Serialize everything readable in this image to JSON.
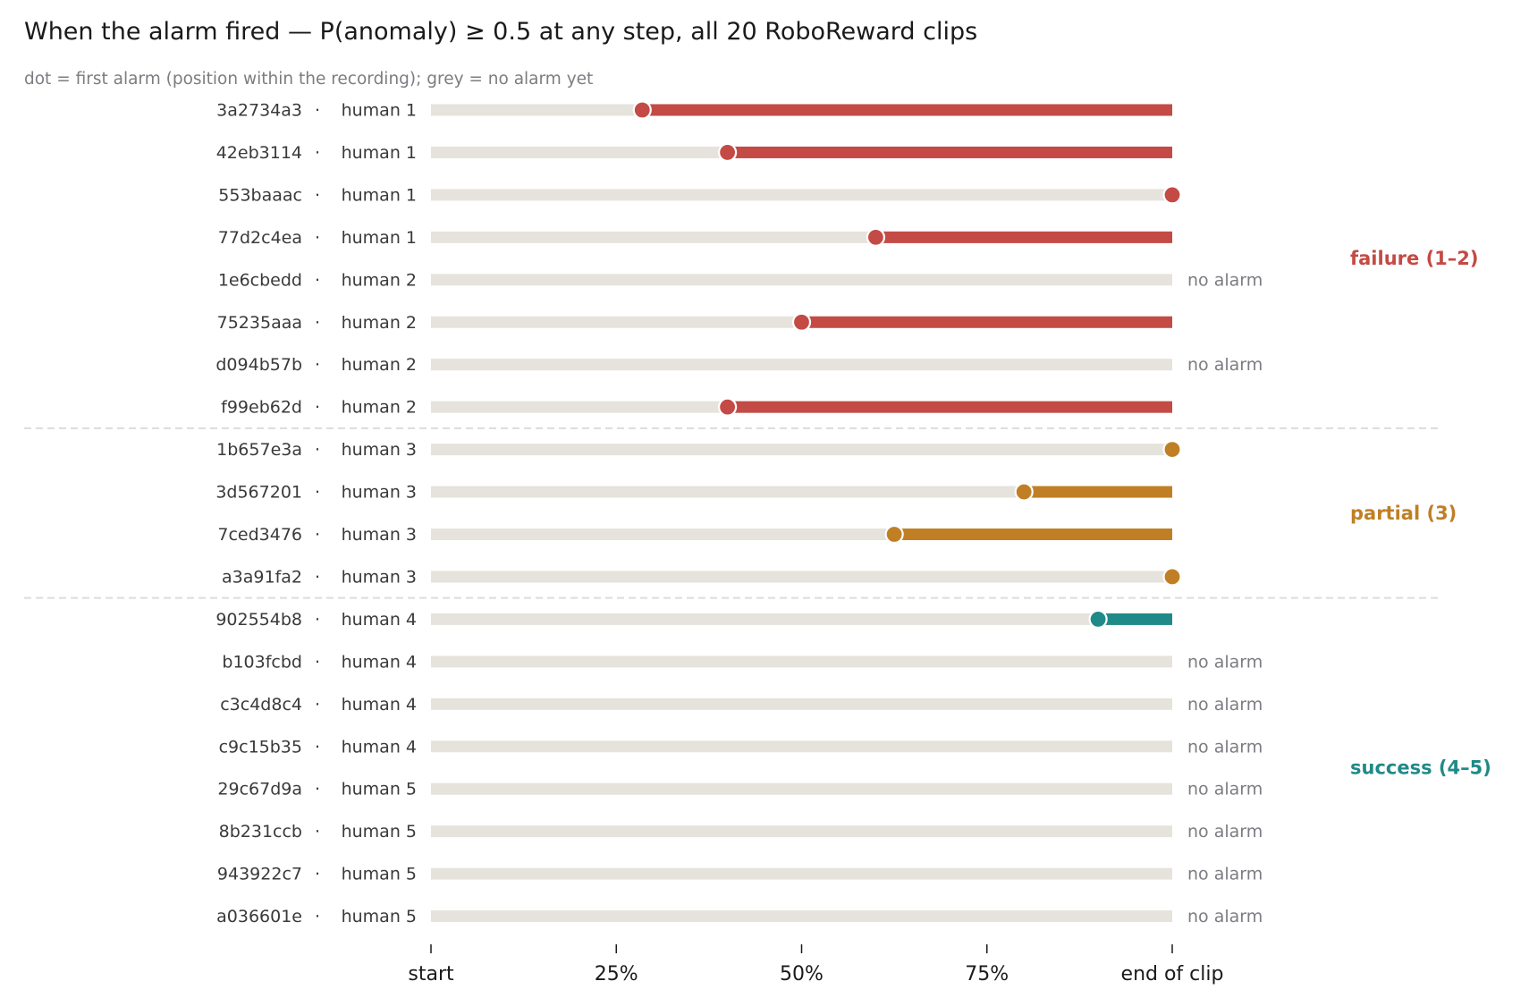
{
  "chart_data": {
    "type": "dot-range",
    "title": "When the alarm fired — P(anomaly) ≥ 0.5 at any step, all 20 RoboReward clips",
    "subtitle": "dot = first alarm (position within the recording); grey = no alarm yet",
    "x_ticks": [
      {
        "value": 0,
        "label": "start"
      },
      {
        "value": 25,
        "label": "25%"
      },
      {
        "value": 50,
        "label": "50%"
      },
      {
        "value": 75,
        "label": "75%"
      },
      {
        "value": 100,
        "label": "end of clip"
      }
    ],
    "xlim": [
      0,
      100
    ],
    "no_alarm_label": "no alarm",
    "separator": "·",
    "groups": [
      {
        "label": "failure (1–2)",
        "color": "#c44a45"
      },
      {
        "label": "partial (3)",
        "color": "#c07f25"
      },
      {
        "label": "success (4–5)",
        "color": "#1f8a88"
      }
    ],
    "track_color": "#e6e3dc",
    "rows": [
      {
        "clip": "3a2734a3",
        "rating": "human 1",
        "group": 0,
        "alarm": 28.5
      },
      {
        "clip": "42eb3114",
        "rating": "human 1",
        "group": 0,
        "alarm": 40
      },
      {
        "clip": "553baaac",
        "rating": "human 1",
        "group": 0,
        "alarm": 100
      },
      {
        "clip": "77d2c4ea",
        "rating": "human 1",
        "group": 0,
        "alarm": 60
      },
      {
        "clip": "1e6cbedd",
        "rating": "human 2",
        "group": 0,
        "alarm": null
      },
      {
        "clip": "75235aaa",
        "rating": "human 2",
        "group": 0,
        "alarm": 50
      },
      {
        "clip": "d094b57b",
        "rating": "human 2",
        "group": 0,
        "alarm": null
      },
      {
        "clip": "f99eb62d",
        "rating": "human 2",
        "group": 0,
        "alarm": 40
      },
      {
        "clip": "1b657e3a",
        "rating": "human 3",
        "group": 1,
        "alarm": 100
      },
      {
        "clip": "3d567201",
        "rating": "human 3",
        "group": 1,
        "alarm": 80
      },
      {
        "clip": "7ced3476",
        "rating": "human 3",
        "group": 1,
        "alarm": 62.5
      },
      {
        "clip": "a3a91fa2",
        "rating": "human 3",
        "group": 1,
        "alarm": 100
      },
      {
        "clip": "902554b8",
        "rating": "human 4",
        "group": 2,
        "alarm": 90
      },
      {
        "clip": "b103fcbd",
        "rating": "human 4",
        "group": 2,
        "alarm": null
      },
      {
        "clip": "c3c4d8c4",
        "rating": "human 4",
        "group": 2,
        "alarm": null
      },
      {
        "clip": "c9c15b35",
        "rating": "human 4",
        "group": 2,
        "alarm": null
      },
      {
        "clip": "29c67d9a",
        "rating": "human 5",
        "group": 2,
        "alarm": null
      },
      {
        "clip": "8b231ccb",
        "rating": "human 5",
        "group": 2,
        "alarm": null
      },
      {
        "clip": "943922c7",
        "rating": "human 5",
        "group": 2,
        "alarm": null
      },
      {
        "clip": "a036601e",
        "rating": "human 5",
        "group": 2,
        "alarm": null
      }
    ]
  }
}
